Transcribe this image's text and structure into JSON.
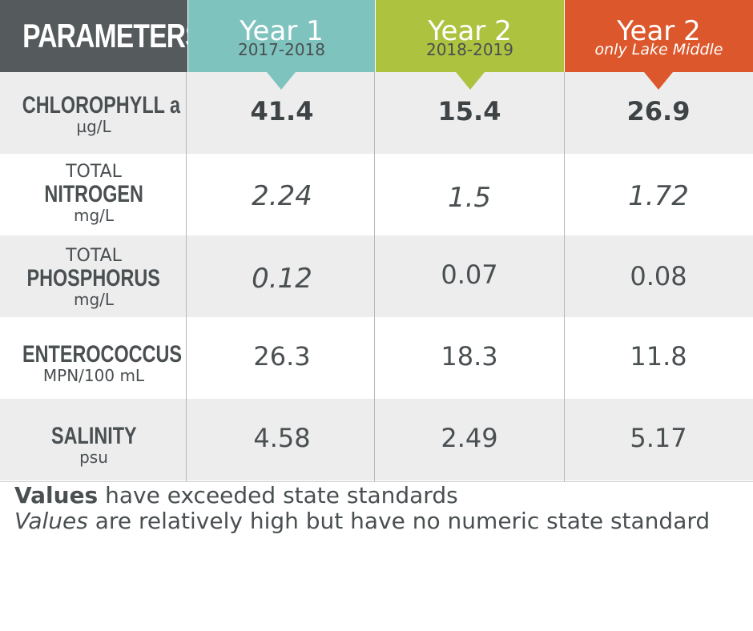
{
  "header": {
    "parameters_label": "PARAMETERS",
    "columns": [
      {
        "title": "Year 1",
        "subtitle": "2017-2018"
      },
      {
        "title": "Year 2",
        "subtitle": "2018-2019"
      },
      {
        "title": "Year 2",
        "subtitle": "only Lake Middle"
      }
    ]
  },
  "colors": {
    "parameters_header": "#555a5c",
    "year1": "#7fc3be",
    "year2": "#adc23f",
    "year2_lake_middle": "#dc572c",
    "row_shade": "#ededee"
  },
  "rows": [
    {
      "prefix": "",
      "name": "CHLOROPHYLL a",
      "unit": "µg/L",
      "values": [
        "41.4",
        "15.4",
        "26.9"
      ]
    },
    {
      "prefix": "TOTAL",
      "name": "NITROGEN",
      "unit": "mg/L",
      "values": [
        "2.24",
        "1.5",
        "1.72"
      ]
    },
    {
      "prefix": "TOTAL",
      "name": "PHOSPHORUS",
      "unit": "mg/L",
      "values": [
        "0.12",
        "0.07",
        "0.08"
      ]
    },
    {
      "prefix": "",
      "name": "ENTEROCOCCUS",
      "unit": "MPN/100 mL",
      "values": [
        "26.3",
        "18.3",
        "11.8"
      ]
    },
    {
      "prefix": "",
      "name": "SALINITY",
      "unit": "psu",
      "values": [
        "4.58",
        "2.49",
        "5.17"
      ]
    }
  ],
  "legend": {
    "bold_word": "Values",
    "bold_text": " have exceeded state standards",
    "italic_word": "Values",
    "italic_text": " are relatively high but have no numeric state standard"
  }
}
